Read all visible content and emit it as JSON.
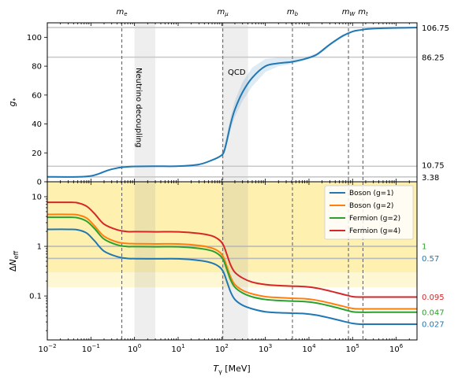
{
  "chart_data": [
    {
      "type": "line",
      "panel": "top",
      "ylabel": "g*",
      "xscale": "log",
      "yscale": "linear",
      "xlim": [
        0.01,
        3000000
      ],
      "ylim": [
        0,
        110
      ],
      "yticks": [
        0,
        20,
        40,
        60,
        80,
        100
      ],
      "series": [
        {
          "color": "#1f77b4",
          "x": [
            0.01,
            0.05,
            0.1,
            0.15,
            0.25,
            0.4,
            0.6,
            1,
            3,
            10,
            30,
            60,
            90,
            110,
            130,
            160,
            200,
            300,
            500,
            1000,
            2000,
            4000,
            8000,
            15000,
            30000,
            60000,
            100000,
            150000,
            300000,
            3000000
          ],
          "y": [
            3.38,
            3.4,
            4,
            5.5,
            8,
            9.5,
            10.2,
            10.6,
            10.75,
            10.8,
            12,
            15,
            17.5,
            20,
            28,
            40,
            50,
            62,
            72,
            80,
            82,
            83,
            85,
            88,
            95,
            101,
            104,
            105,
            106,
            106.75
          ]
        }
      ],
      "uncertainty_band": {
        "color": "#1f77b4",
        "x": [
          90,
          110,
          130,
          160,
          200,
          300,
          500,
          1000,
          2000,
          4000,
          8000,
          15000,
          30000,
          60000,
          100000
        ],
        "upper": [
          18,
          22,
          32,
          45,
          56,
          69,
          79,
          85,
          86,
          86,
          86,
          89,
          96,
          102,
          104
        ],
        "lower": [
          17,
          18.5,
          25,
          36,
          45,
          56,
          66,
          76,
          80,
          81.5,
          84,
          87,
          94,
          100,
          103.5
        ]
      },
      "reference_lines": [
        {
          "y": 106.75,
          "label": "106.75"
        },
        {
          "y": 86.25,
          "label": "86.25"
        },
        {
          "y": 10.75,
          "label": "10.75"
        },
        {
          "y": 3.38,
          "label": "3.38"
        }
      ],
      "annotations": [
        {
          "text": "Neutrino decoupling",
          "rotated": true
        },
        {
          "text": "QCD"
        }
      ]
    },
    {
      "type": "line",
      "panel": "bottom",
      "xlabel": "Tγ [MeV]",
      "ylabel": "ΔNeff",
      "xscale": "log",
      "yscale": "log",
      "xlim": [
        0.01,
        3000000
      ],
      "ylim": [
        0.013,
        20
      ],
      "legend_position": "top-right",
      "series": [
        {
          "name": "Boson (g=1)",
          "color": "#1f77b4",
          "x": [
            0.01,
            0.03,
            0.05,
            0.08,
            0.12,
            0.2,
            0.4,
            0.7,
            1,
            3,
            10,
            30,
            60,
            90,
            110,
            130,
            160,
            200,
            300,
            500,
            1000,
            2000,
            4000,
            8000,
            15000,
            30000,
            60000,
            100000,
            150000,
            300000,
            3000000
          ],
          "y": [
            2.2,
            2.2,
            2.15,
            1.85,
            1.3,
            0.8,
            0.62,
            0.57,
            0.565,
            0.56,
            0.56,
            0.52,
            0.46,
            0.38,
            0.3,
            0.2,
            0.12,
            0.085,
            0.065,
            0.055,
            0.048,
            0.046,
            0.045,
            0.044,
            0.041,
            0.036,
            0.031,
            0.028,
            0.027,
            0.027,
            0.027
          ]
        },
        {
          "name": "Boson (g=2)",
          "color": "#ff7f0e",
          "x": [
            0.01,
            0.03,
            0.05,
            0.08,
            0.12,
            0.2,
            0.4,
            0.7,
            1,
            3,
            10,
            30,
            60,
            90,
            110,
            130,
            160,
            200,
            300,
            500,
            1000,
            2000,
            4000,
            8000,
            15000,
            30000,
            60000,
            100000,
            150000,
            300000,
            3000000
          ],
          "y": [
            4.4,
            4.4,
            4.3,
            3.7,
            2.6,
            1.6,
            1.22,
            1.14,
            1.13,
            1.12,
            1.12,
            1.04,
            0.92,
            0.76,
            0.6,
            0.4,
            0.24,
            0.17,
            0.13,
            0.11,
            0.097,
            0.093,
            0.09,
            0.088,
            0.082,
            0.072,
            0.062,
            0.056,
            0.055,
            0.055,
            0.055
          ]
        },
        {
          "name": "Fermion (g=2)",
          "color": "#2ca02c",
          "x": [
            0.01,
            0.03,
            0.05,
            0.08,
            0.12,
            0.2,
            0.4,
            0.7,
            1,
            3,
            10,
            30,
            60,
            90,
            110,
            130,
            160,
            200,
            300,
            500,
            1000,
            2000,
            4000,
            8000,
            15000,
            30000,
            60000,
            100000,
            150000,
            300000,
            3000000
          ],
          "y": [
            3.85,
            3.85,
            3.75,
            3.2,
            2.3,
            1.4,
            1.07,
            0.99,
            0.99,
            0.98,
            0.98,
            0.91,
            0.81,
            0.66,
            0.52,
            0.35,
            0.21,
            0.15,
            0.115,
            0.096,
            0.085,
            0.081,
            0.079,
            0.077,
            0.072,
            0.063,
            0.054,
            0.048,
            0.047,
            0.047,
            0.047
          ]
        },
        {
          "name": "Fermion (g=4)",
          "color": "#d62728",
          "x": [
            0.01,
            0.03,
            0.05,
            0.08,
            0.12,
            0.2,
            0.4,
            0.7,
            1,
            3,
            10,
            30,
            60,
            90,
            110,
            130,
            160,
            200,
            300,
            500,
            1000,
            2000,
            4000,
            8000,
            15000,
            30000,
            60000,
            100000,
            150000,
            300000,
            3000000
          ],
          "y": [
            7.7,
            7.7,
            7.5,
            6.4,
            4.6,
            2.8,
            2.15,
            1.98,
            1.98,
            1.96,
            1.96,
            1.82,
            1.62,
            1.32,
            1.04,
            0.7,
            0.42,
            0.3,
            0.23,
            0.19,
            0.17,
            0.162,
            0.158,
            0.154,
            0.144,
            0.126,
            0.108,
            0.097,
            0.095,
            0.095,
            0.095
          ]
        }
      ],
      "reference_lines": [
        {
          "y": 1,
          "label": "1",
          "color": "#2ca02c"
        },
        {
          "y": 0.57,
          "label": "0.57",
          "color": "#1f77b4"
        }
      ],
      "right_value_labels": [
        {
          "y": 0.095,
          "label": "0.095",
          "color": "#d62728"
        },
        {
          "y": 0.047,
          "label": "0.047",
          "color": "#2ca02c"
        },
        {
          "y": 0.027,
          "label": "0.027",
          "color": "#1f77b4"
        }
      ],
      "shaded_bands": [
        {
          "y_range": [
            0.3,
            20
          ],
          "color": "#fde98c"
        },
        {
          "y_range": [
            0.15,
            0.3
          ],
          "color": "#fdf3c2"
        }
      ]
    }
  ],
  "shared": {
    "xticks": [
      0.01,
      0.1,
      1,
      10,
      100,
      1000,
      10000,
      100000,
      1000000
    ],
    "xtick_labels": [
      "10^-2",
      "10^-1",
      "10^0",
      "10^1",
      "10^2",
      "10^3",
      "10^4",
      "10^5",
      "10^6"
    ],
    "thresholds": [
      {
        "label": "me",
        "x": 0.511
      },
      {
        "label": "mμ",
        "x": 105.7
      },
      {
        "label": "mb",
        "x": 4180
      },
      {
        "label": "mW",
        "x": 80400
      },
      {
        "label": "mt",
        "x": 173000
      }
    ],
    "gray_bands": [
      {
        "x": [
          1,
          3
        ]
      },
      {
        "x": [
          100,
          400
        ]
      }
    ]
  }
}
